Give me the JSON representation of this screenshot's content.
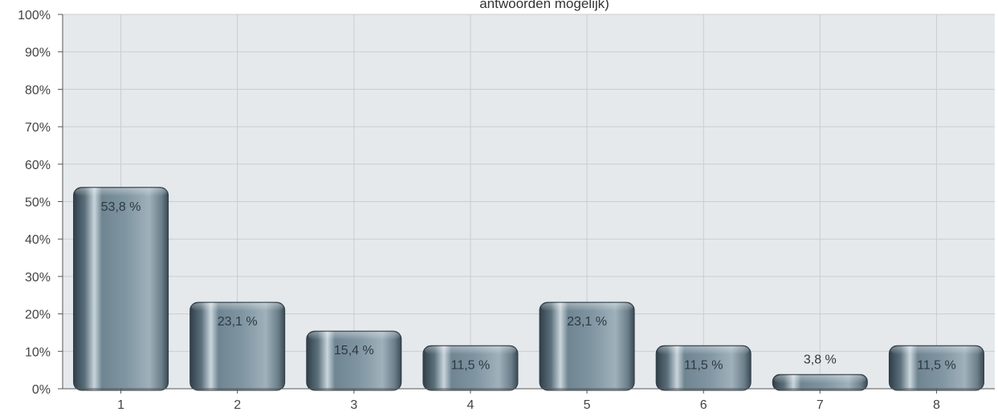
{
  "chart_data": {
    "type": "bar",
    "title": "antwoorden mogelijk)",
    "categories": [
      "1",
      "2",
      "3",
      "4",
      "5",
      "6",
      "7",
      "8"
    ],
    "values": [
      53.8,
      23.1,
      15.4,
      11.5,
      23.1,
      11.5,
      3.8,
      11.5
    ],
    "data_labels": [
      "53,8 %",
      "23,1 %",
      "15,4 %",
      "11,5 %",
      "23,1 %",
      "11,5 %",
      "3,8 %",
      "11,5 %"
    ],
    "y_ticks": [
      "0%",
      "10%",
      "20%",
      "30%",
      "40%",
      "50%",
      "60%",
      "70%",
      "80%",
      "90%",
      "100%"
    ],
    "ylim": [
      0,
      100
    ],
    "grid": true,
    "legend": "none",
    "colors": {
      "bar_dark": "#3f5360",
      "bar_mid": "#7d929e",
      "bar_light": "#b5c4cc",
      "plot_bg": "#e6e9ec",
      "grid": "#c9cdd1",
      "axis": "#555555"
    }
  }
}
